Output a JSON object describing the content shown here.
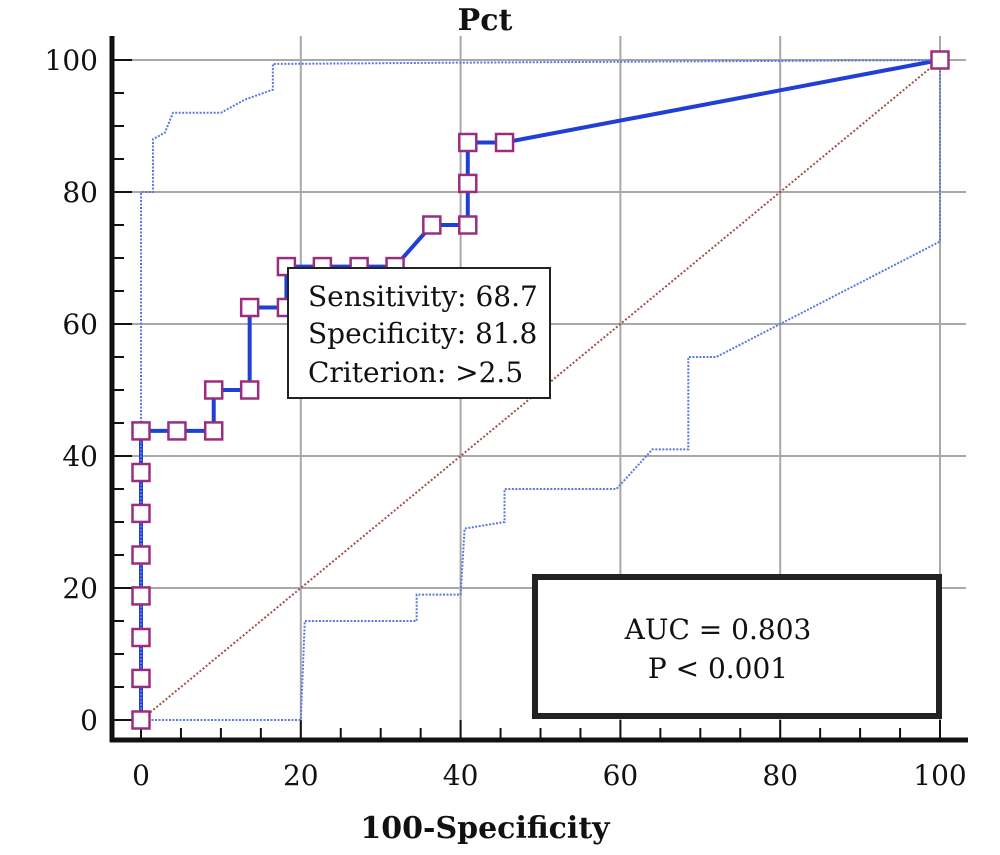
{
  "chart_data": {
    "type": "line",
    "title": "Pct",
    "xlabel": "100-Specificity",
    "ylabel": "",
    "xlim": [
      0,
      100
    ],
    "ylim": [
      0,
      100
    ],
    "xticks": [
      0,
      20,
      40,
      60,
      80,
      100
    ],
    "yticks": [
      0,
      20,
      40,
      60,
      80,
      100
    ],
    "grid": true,
    "series": [
      {
        "role": "roc",
        "color": "#1f3fd6",
        "marker": "square",
        "marker_color": "#9b2d7f",
        "points": [
          [
            0,
            0
          ],
          [
            0,
            6.3
          ],
          [
            0,
            12.5
          ],
          [
            0,
            18.8
          ],
          [
            0,
            25
          ],
          [
            0,
            31.3
          ],
          [
            0,
            37.5
          ],
          [
            0,
            43.8
          ],
          [
            4.5,
            43.8
          ],
          [
            9.1,
            43.8
          ],
          [
            9.1,
            50
          ],
          [
            13.6,
            50
          ],
          [
            13.6,
            62.5
          ],
          [
            18.2,
            62.5
          ],
          [
            18.2,
            68.7
          ],
          [
            22.7,
            68.7
          ],
          [
            27.3,
            68.7
          ],
          [
            31.8,
            68.7
          ],
          [
            36.4,
            75
          ],
          [
            40.9,
            75
          ],
          [
            40.9,
            81.3
          ],
          [
            40.9,
            87.5
          ],
          [
            45.5,
            87.5
          ],
          [
            100,
            100
          ]
        ]
      },
      {
        "role": "upper-ci",
        "color": "#5b78e0",
        "points": [
          [
            0,
            0
          ],
          [
            0,
            80
          ],
          [
            1.5,
            80
          ],
          [
            1.5,
            88
          ],
          [
            3,
            89
          ],
          [
            4,
            92
          ],
          [
            10,
            92
          ],
          [
            13,
            94
          ],
          [
            16.5,
            95.5
          ],
          [
            16.5,
            99.4
          ],
          [
            40,
            99.6
          ],
          [
            100,
            100
          ]
        ]
      },
      {
        "role": "lower-ci",
        "color": "#5b78e0",
        "points": [
          [
            0,
            0
          ],
          [
            20,
            0
          ],
          [
            20.5,
            15
          ],
          [
            34.5,
            15
          ],
          [
            34.5,
            19
          ],
          [
            40,
            19
          ],
          [
            40.5,
            29
          ],
          [
            45.5,
            30
          ],
          [
            45.5,
            35
          ],
          [
            59.5,
            35
          ],
          [
            64,
            41
          ],
          [
            68.5,
            41
          ],
          [
            68.5,
            55
          ],
          [
            72,
            55
          ],
          [
            100,
            72.5
          ],
          [
            100,
            100
          ]
        ]
      },
      {
        "role": "reference",
        "color": "#a0524a",
        "points": [
          [
            0,
            0
          ],
          [
            100,
            100
          ]
        ]
      }
    ],
    "annotation": {
      "point": [
        18.2,
        68.7
      ],
      "lines": [
        "Sensitivity: 68.7",
        "Specificity: 81.8",
        "Criterion: >2.5"
      ]
    },
    "stats_box": {
      "lines": [
        "AUC = 0.803",
        "P < 0.001"
      ]
    }
  }
}
